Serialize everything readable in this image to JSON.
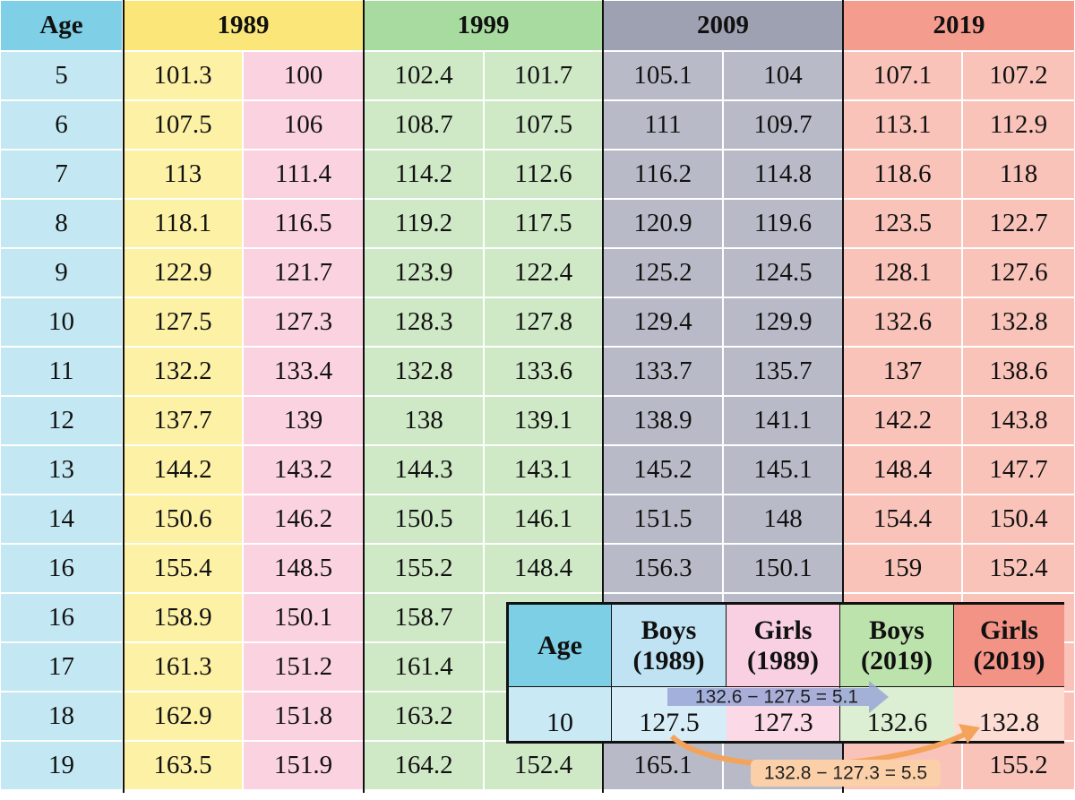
{
  "table": {
    "headers": [
      "Age",
      "1989",
      "1999",
      "2009",
      "2019"
    ],
    "rows": [
      [
        "5",
        "101.3",
        "100",
        "102.4",
        "101.7",
        "105.1",
        "104",
        "107.1",
        "107.2"
      ],
      [
        "6",
        "107.5",
        "106",
        "108.7",
        "107.5",
        "111",
        "109.7",
        "113.1",
        "112.9"
      ],
      [
        "7",
        "113",
        "111.4",
        "114.2",
        "112.6",
        "116.2",
        "114.8",
        "118.6",
        "118"
      ],
      [
        "8",
        "118.1",
        "116.5",
        "119.2",
        "117.5",
        "120.9",
        "119.6",
        "123.5",
        "122.7"
      ],
      [
        "9",
        "122.9",
        "121.7",
        "123.9",
        "122.4",
        "125.2",
        "124.5",
        "128.1",
        "127.6"
      ],
      [
        "10",
        "127.5",
        "127.3",
        "128.3",
        "127.8",
        "129.4",
        "129.9",
        "132.6",
        "132.8"
      ],
      [
        "11",
        "132.2",
        "133.4",
        "132.8",
        "133.6",
        "133.7",
        "135.7",
        "137",
        "138.6"
      ],
      [
        "12",
        "137.7",
        "139",
        "138",
        "139.1",
        "138.9",
        "141.1",
        "142.2",
        "143.8"
      ],
      [
        "13",
        "144.2",
        "143.2",
        "144.3",
        "143.1",
        "145.2",
        "145.1",
        "148.4",
        "147.7"
      ],
      [
        "14",
        "150.6",
        "146.2",
        "150.5",
        "146.1",
        "151.5",
        "148",
        "154.4",
        "150.4"
      ],
      [
        "16",
        "155.4",
        "148.5",
        "155.2",
        "148.4",
        "156.3",
        "150.1",
        "159",
        "152.4"
      ],
      [
        "16",
        "158.9",
        "150.1",
        "158.7",
        null,
        null,
        null,
        null,
        null
      ],
      [
        "17",
        "161.3",
        "151.2",
        "161.4",
        null,
        null,
        null,
        null,
        null
      ],
      [
        "18",
        "162.9",
        "151.8",
        "163.2",
        null,
        null,
        null,
        null,
        null
      ],
      [
        "19",
        "163.5",
        "151.9",
        "164.2",
        "152.4",
        "165.1",
        null,
        null,
        "155.2"
      ]
    ]
  },
  "inset": {
    "headers": [
      "Age",
      "Boys\n(1989)",
      "Girls\n(1989)",
      "Boys\n(2019)",
      "Girls\n(2019)"
    ],
    "row": [
      "10",
      "127.5",
      "127.3",
      "132.6",
      "132.8"
    ],
    "annotations": [
      "132.6 − 127.5 = 5.1",
      "132.8 − 127.3 = 5.5"
    ]
  }
}
